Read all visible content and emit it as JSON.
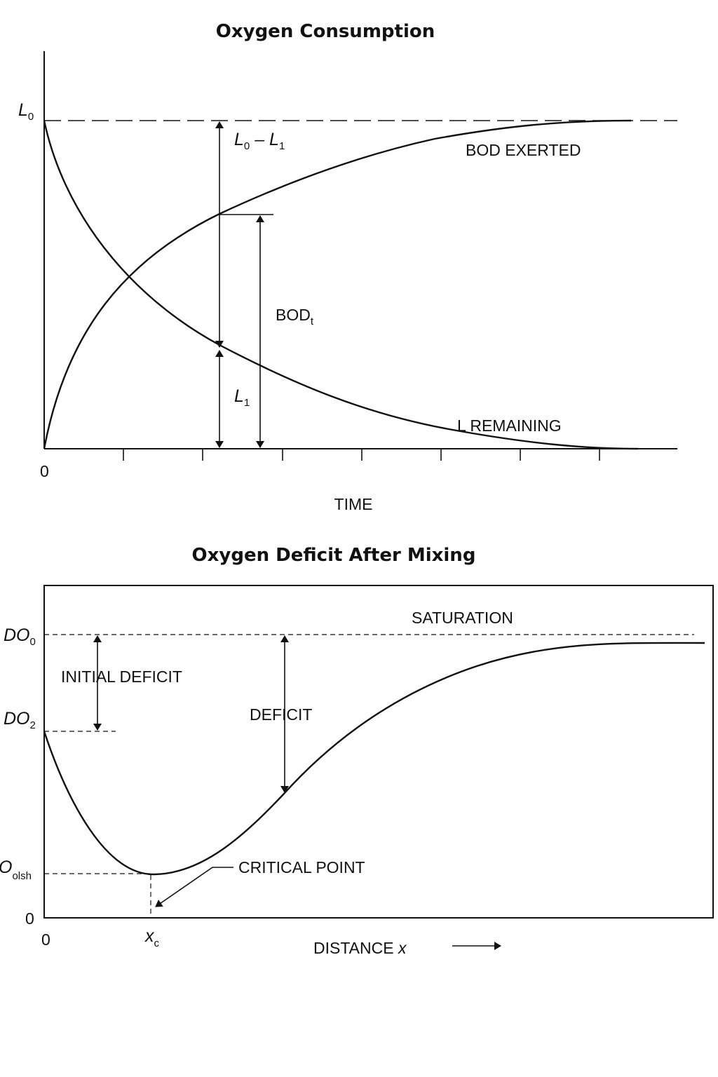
{
  "top_chart": {
    "title": "Oxygen Consumption",
    "y_label": "L",
    "y_label_sub": "0",
    "origin_label": "0",
    "x_axis_label": "TIME",
    "curve_bod_label": "BOD EXERTED",
    "curve_remaining_label": "L REMAINING",
    "diff_label_a": "L",
    "diff_label_a_sub": "0",
    "diff_label_minus": " – ",
    "diff_label_b": "L",
    "diff_label_b_sub": "1",
    "bod_label": "BOD",
    "bod_label_sub": "t",
    "l1_label": "L",
    "l1_label_sub": "1"
  },
  "bottom_chart": {
    "title": "Oxygen Deficit After Mixing",
    "do0_label": "DO",
    "do0_sub": "0",
    "do2_label": "DO",
    "do2_sub": "2",
    "domin_label": "O",
    "domin_sub": "olsh",
    "y_zero_label": "0",
    "x_zero_label": "0",
    "xc_label": "x",
    "xc_sub": "c",
    "saturation_label": "SATURATION",
    "initial_deficit_label": "INITIAL DEFICIT",
    "deficit_label": "DEFICIT",
    "critical_point_label": "CRITICAL POINT",
    "x_axis_label": "DISTANCE ",
    "x_axis_var": "x"
  }
}
